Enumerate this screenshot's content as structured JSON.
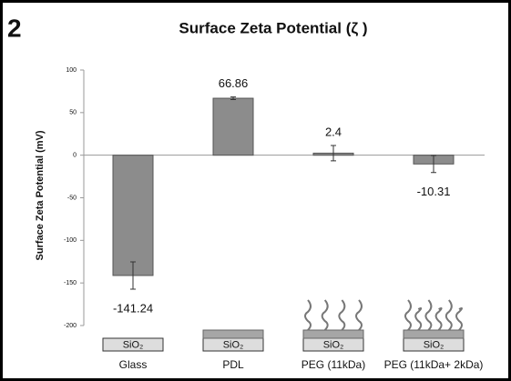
{
  "panel_label": "2",
  "chart_data": {
    "type": "bar",
    "title": "Surface Zeta Potential (ζ )",
    "y_label": "Surface Zeta Potential (mV)",
    "categories": [
      "Glass",
      "PDL",
      "PEG (11kDa)",
      "PEG (11kDa+ 2kDa)"
    ],
    "values": [
      -141.24,
      66.86,
      2.4,
      -10.31
    ],
    "errors": [
      16,
      1.5,
      9,
      10
    ],
    "color": "#8c8c8c",
    "ylim": [
      -200,
      100
    ],
    "yticks": [
      100,
      50,
      0,
      -50,
      -100,
      -150,
      -200
    ],
    "substrate_label": "SiO₂"
  }
}
